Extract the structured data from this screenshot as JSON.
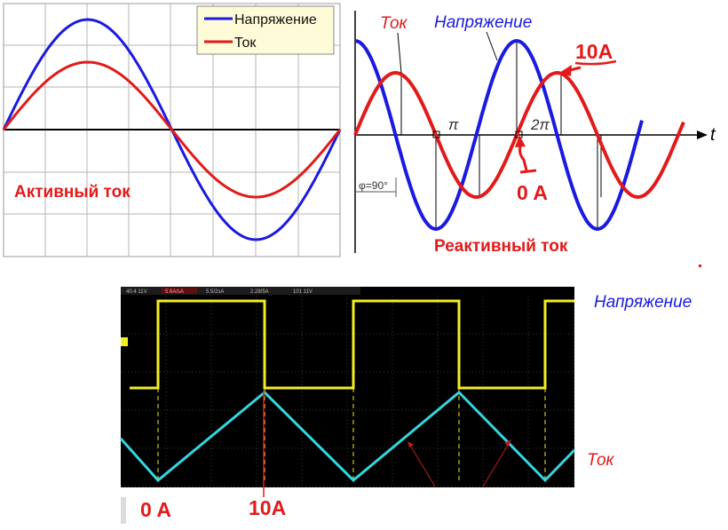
{
  "panel_active": {
    "legend": {
      "voltage": "Напряжение",
      "current": "Ток"
    },
    "caption": "Активный ток"
  },
  "panel_reactive": {
    "label_current": "Ток",
    "label_voltage": "Напряжение",
    "axis_t": "t",
    "tick_pi": "π",
    "tick_2pi": "2π",
    "phase": "φ=90°",
    "peak_label": "10A",
    "zero_label": "0 A",
    "caption": "Реактивный ток"
  },
  "panel_scope": {
    "readouts": [
      "40.4 11V",
      "5.6A/sA",
      "5.5/2sA",
      "2.28/5A",
      "101 11V"
    ],
    "label_voltage": "Напряжение",
    "label_current": "Ток",
    "zero_label": "0 A",
    "peak_label": "10A"
  },
  "colors": {
    "voltage": "#1a1ae0",
    "current": "#e21a1a",
    "scope_voltage": "#f2ee22",
    "scope_current": "#33d6e0"
  }
}
